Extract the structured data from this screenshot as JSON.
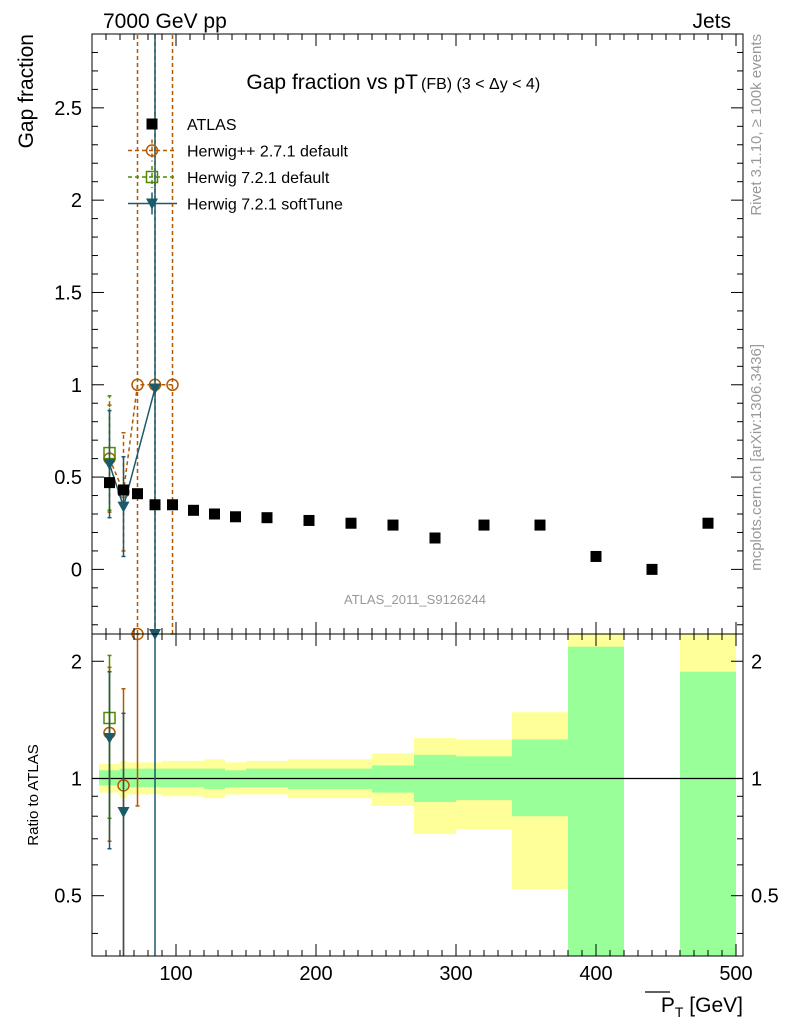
{
  "header": {
    "left": "7000 GeV pp",
    "right": "Jets"
  },
  "side_labels": {
    "rivet": "Rivet 3.1.10, ≥ 100k events",
    "mcplots": "mcplots.cern.ch [arXiv:1306.3436]"
  },
  "chart_data": [
    {
      "type": "scatter",
      "title": "Gap fraction vs pT",
      "title_suffix": "(FB) (3 < Δy < 4)",
      "watermark": "ATLAS_2011_S9126244",
      "ylabel": "Gap fraction",
      "xlim": [
        40,
        505
      ],
      "ylim": [
        -0.35,
        2.9
      ],
      "yticks": [
        0,
        0.5,
        1,
        1.5,
        2,
        2.5
      ],
      "ytick_labels": [
        "0",
        "0.5",
        "1",
        "1.5",
        "2",
        "2.5"
      ],
      "legend_position": "top-left",
      "series": [
        {
          "name": "ATLAS",
          "color": "#000000",
          "marker": "square-filled",
          "x": [
            52.5,
            62.5,
            72.5,
            85,
            97.5,
            112.5,
            127.5,
            142.5,
            165,
            195,
            225,
            255,
            285,
            320,
            360,
            400,
            440,
            480
          ],
          "y": [
            0.47,
            0.43,
            0.41,
            0.35,
            0.35,
            0.32,
            0.3,
            0.285,
            0.28,
            0.265,
            0.25,
            0.24,
            0.17,
            0.24,
            0.24,
            0.07,
            0.0,
            0.25
          ]
        },
        {
          "name": "Herwig++ 2.7.1 default",
          "color": "#b35900",
          "marker": "circle-open",
          "line": "dashed",
          "x": [
            52.5,
            62.5,
            72.5,
            85,
            97.5
          ],
          "y": [
            0.6,
            0.42,
            1.0,
            1.0,
            1.0
          ],
          "err": [
            0.29,
            0.32,
            2.0,
            2.0,
            2.0
          ]
        },
        {
          "name": "Herwig 7.2.1 default",
          "color": "#4d8c00",
          "marker": "square-open",
          "line": "dashed",
          "x": [
            52.5
          ],
          "y": [
            0.63
          ],
          "err": [
            0.31
          ]
        },
        {
          "name": "Herwig 7.2.1 softTune",
          "color": "#1a5a6a",
          "marker": "triangle-down-filled",
          "line": "solid",
          "x": [
            52.5,
            62.5,
            85
          ],
          "y": [
            0.57,
            0.34,
            0.98
          ],
          "err": [
            0.29,
            0.27,
            2.5
          ]
        }
      ]
    },
    {
      "type": "area",
      "ylabel": "Ratio to ATLAS",
      "xlabel": "P_T [GeV]",
      "xlim": [
        40,
        505
      ],
      "ylim": [
        0.35,
        2.35
      ],
      "xticks": [
        100,
        200,
        300,
        400,
        500
      ],
      "xtick_labels": [
        "100",
        "200",
        "300",
        "400",
        "500"
      ],
      "yticks": [
        0.5,
        1,
        2
      ],
      "ytick_labels": [
        "0.5",
        "1",
        "2"
      ],
      "bands": {
        "edges": [
          45,
          60,
          65,
          80,
          90,
          105,
          120,
          135,
          150,
          180,
          210,
          240,
          270,
          300,
          340,
          380,
          420,
          460,
          500
        ],
        "yellow_lo": [
          0.92,
          0.89,
          0.91,
          0.91,
          0.9,
          0.9,
          0.89,
          0.91,
          0.91,
          0.89,
          0.89,
          0.85,
          0.72,
          0.74,
          0.52,
          0.35,
          null,
          0.35
        ],
        "yellow_hi": [
          1.09,
          1.11,
          1.1,
          1.1,
          1.11,
          1.11,
          1.12,
          1.1,
          1.11,
          1.12,
          1.12,
          1.16,
          1.27,
          1.26,
          1.48,
          2.35,
          null,
          2.35
        ],
        "green_lo": [
          0.96,
          0.94,
          0.95,
          0.95,
          0.95,
          0.95,
          0.94,
          0.95,
          0.95,
          0.94,
          0.94,
          0.92,
          0.87,
          0.88,
          0.8,
          0.35,
          null,
          0.35
        ],
        "green_hi": [
          1.05,
          1.06,
          1.06,
          1.06,
          1.06,
          1.06,
          1.06,
          1.05,
          1.06,
          1.06,
          1.06,
          1.08,
          1.15,
          1.14,
          1.26,
          2.18,
          null,
          1.88
        ]
      },
      "series": [
        {
          "name": "Herwig++ 2.7.1 default",
          "color": "#b35900",
          "x": [
            52.5,
            62.5,
            72.5
          ],
          "y": [
            1.31,
            0.96,
            2.35
          ],
          "err": [
            0.62,
            0.74,
            1.5
          ]
        },
        {
          "name": "Herwig 7.2.1 default",
          "color": "#4d8c00",
          "x": [
            52.5
          ],
          "y": [
            1.43
          ],
          "err": [
            0.64
          ]
        },
        {
          "name": "Herwig 7.2.1 softTune",
          "color": "#1a5a6a",
          "x": [
            52.5,
            62.5,
            85
          ],
          "y": [
            1.27,
            0.82,
            2.8
          ],
          "err": [
            0.61,
            0.65,
            5.0
          ]
        }
      ]
    }
  ]
}
